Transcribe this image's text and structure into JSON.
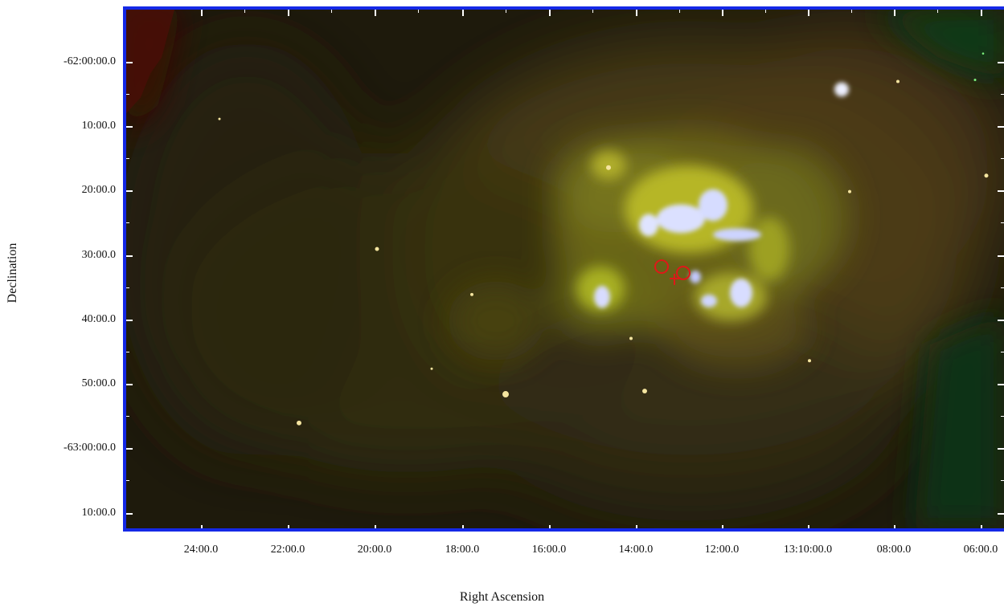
{
  "axes": {
    "x_title": "Right Ascension",
    "y_title": "Declination",
    "x_ticks": [
      "24:00.0",
      "22:00.0",
      "20:00.0",
      "18:00.0",
      "16:00.0",
      "14:00.0",
      "12:00.0",
      "13:10:00.0",
      "08:00.0",
      "06:00.0"
    ],
    "y_ticks": [
      "-62:00:00.0",
      "10:00.0",
      "20:00.0",
      "30:00.0",
      "40:00.0",
      "50:00.0",
      "-63:00:00.0",
      "10:00.0"
    ]
  },
  "colors": {
    "frame": "#1428e6",
    "markers": "#e01818"
  },
  "markers": {
    "circles": 2,
    "crosses": 1
  }
}
